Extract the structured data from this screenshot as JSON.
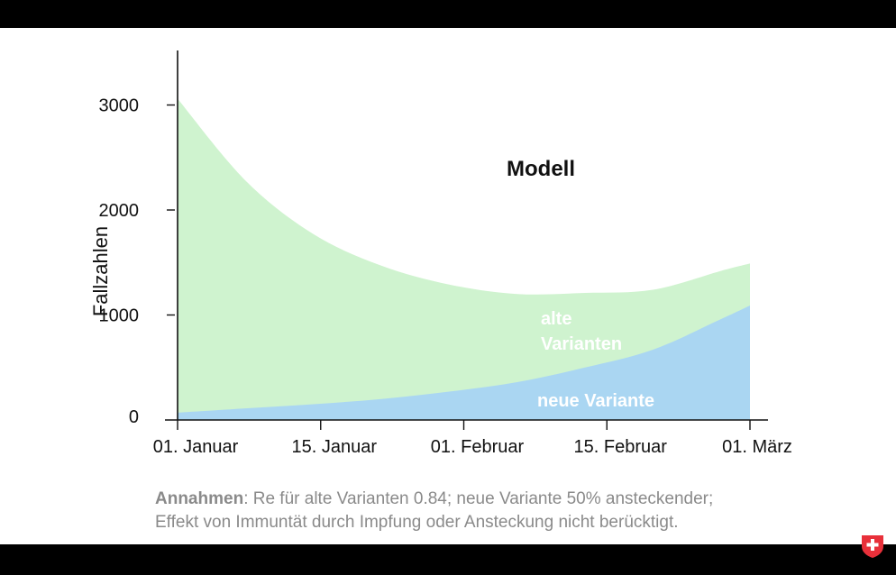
{
  "chart_data": {
    "type": "area",
    "title": "Modell",
    "ylabel": "Fallzahlen",
    "xlabel": "",
    "x_ticks": [
      "01. Januar",
      "15. Januar",
      "01. Februar",
      "15. Februar",
      "01. März"
    ],
    "x": [
      0,
      7,
      14,
      21,
      28,
      35,
      42,
      49,
      56,
      59
    ],
    "x_range": [
      0,
      59
    ],
    "ylim": [
      0,
      3500
    ],
    "y_ticks": [
      0,
      1000,
      2000,
      3000
    ],
    "stacked": true,
    "series": [
      {
        "name": "neue Variante",
        "color": "#aad6f2",
        "values": [
          70,
          110,
          150,
          200,
          270,
          360,
          500,
          670,
          960,
          1090
        ]
      },
      {
        "name": "alte Varianten",
        "color": "#cff3cf",
        "values": [
          2990,
          2170,
          1620,
          1270,
          1020,
          840,
          710,
          570,
          460,
          400
        ]
      }
    ],
    "series_labels": [
      {
        "series": "alte Varianten",
        "lines": [
          "alte",
          "Varianten"
        ]
      },
      {
        "series": "neue Variante",
        "lines": [
          "neue Variante"
        ]
      }
    ],
    "grid": false
  },
  "notes": {
    "bold": "Annahmen",
    "line1_rest": ": Re für alte Varianten 0.84; neue Variante 50% ansteckender;",
    "line2": "Effekt von Immuntät durch Impfung oder Ansteckung nicht berücktigt."
  },
  "badge": {
    "icon": "swiss-flag-shield-icon",
    "color": "#e8303a"
  }
}
